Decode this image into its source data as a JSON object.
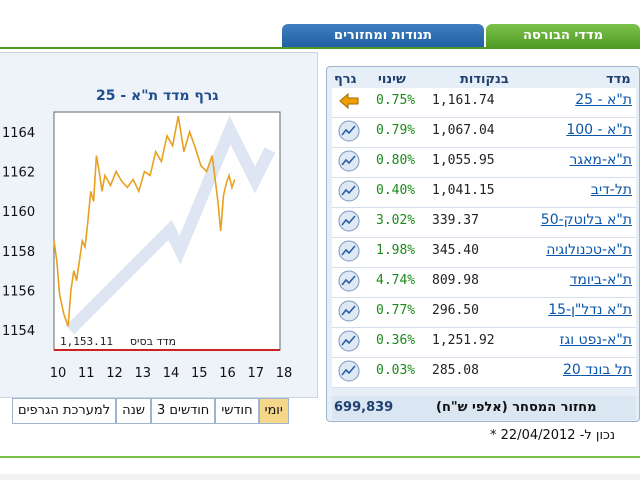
{
  "tabs": [
    {
      "label": "מדדי הבורסה"
    },
    {
      "label": "תנודות ומחזורים"
    }
  ],
  "chart": {
    "title": "גרף מדד ת\"א - 25",
    "base_label": "מדד בסיס",
    "base_value": "1,153.11",
    "y_ticks": [
      "1164",
      "1162",
      "1160",
      "1158",
      "1156",
      "1154"
    ],
    "x_ticks": [
      "10",
      "11",
      "12",
      "13",
      "14",
      "15",
      "16",
      "17",
      "18"
    ]
  },
  "chart_data": {
    "type": "line",
    "title": "גרף מדד ת\"א - 25",
    "xlim": [
      10,
      18
    ],
    "ylim": [
      1153,
      1165
    ],
    "base": 1153.11,
    "series": [
      {
        "x": [
          10.0,
          10.1,
          10.2,
          10.35,
          10.5,
          10.6,
          10.7,
          10.8,
          10.9,
          11.0,
          11.1,
          11.2,
          11.3,
          11.4,
          11.5,
          11.6,
          11.7,
          11.8,
          12.0,
          12.2,
          12.4,
          12.6,
          12.8,
          13.0,
          13.2,
          13.4,
          13.6,
          13.8,
          14.0,
          14.2,
          14.4,
          14.6,
          14.8,
          15.0,
          15.2,
          15.4,
          15.6,
          15.8,
          15.9,
          16.0,
          16.1,
          16.2,
          16.3,
          16.4
        ],
        "y": [
          1158.5,
          1157.5,
          1155.8,
          1154.8,
          1154.2,
          1156.0,
          1157.0,
          1156.5,
          1157.5,
          1158.5,
          1158.2,
          1159.5,
          1161.0,
          1160.5,
          1162.8,
          1162.0,
          1161.0,
          1161.8,
          1161.3,
          1162.0,
          1161.5,
          1161.2,
          1161.6,
          1161.0,
          1162.0,
          1161.8,
          1163.0,
          1162.5,
          1163.8,
          1163.3,
          1164.8,
          1163.0,
          1164.0,
          1163.2,
          1162.3,
          1162.0,
          1162.8,
          1160.5,
          1159.0,
          1160.8,
          1161.4,
          1161.8,
          1161.2,
          1161.6
        ]
      }
    ]
  },
  "buttons": [
    {
      "label": "למערכת הגרפים"
    },
    {
      "label": "שנה"
    },
    {
      "label": "3 חודשים"
    },
    {
      "label": "חודשי"
    },
    {
      "label": "יומי"
    }
  ],
  "table": {
    "headers": {
      "index": "מדד",
      "points": "בנקודות",
      "change": "שינוי",
      "graph": "גרף"
    },
    "rows": [
      {
        "name": "ת\"א - 25",
        "points": "1,161.74",
        "change": "0.75%",
        "icon": "arrow-icon"
      },
      {
        "name": "ת\"א - 100",
        "points": "1,067.04",
        "change": "0.79%",
        "icon": "graph-icon"
      },
      {
        "name": "ת\"א-מאגר",
        "points": "1,055.95",
        "change": "0.80%",
        "icon": "graph-icon"
      },
      {
        "name": "תל-דיב",
        "points": "1,041.15",
        "change": "0.40%",
        "icon": "graph-icon"
      },
      {
        "name": "ת\"א בלוטק-50",
        "points": "339.37",
        "change": "3.02%",
        "icon": "graph-icon"
      },
      {
        "name": "ת\"א-טכנולוגיה",
        "points": "345.40",
        "change": "1.98%",
        "icon": "graph-icon"
      },
      {
        "name": "ת\"א-ביומד",
        "points": "809.98",
        "change": "4.74%",
        "icon": "graph-icon"
      },
      {
        "name": "ת\"א נדל\"ן-15",
        "points": "296.50",
        "change": "0.77%",
        "icon": "graph-icon"
      },
      {
        "name": "ת\"א-נפט וגז",
        "points": "1,251.92",
        "change": "0.36%",
        "icon": "graph-icon"
      },
      {
        "name": "תל בונד 20",
        "points": "285.08",
        "change": "0.03%",
        "icon": "graph-icon"
      }
    ],
    "turnover_label": "מחזור המסחר (אלפי ש\"ח)",
    "turnover_value": "699,839"
  },
  "updated": {
    "text": "* נכון ל- 22/04/2012"
  },
  "colors": {
    "line": "#e8a020",
    "link": "#0a55a8",
    "change": "#1a8a1a",
    "tab_green": "#4f9a25",
    "tab_blue": "#1f5ea0"
  }
}
